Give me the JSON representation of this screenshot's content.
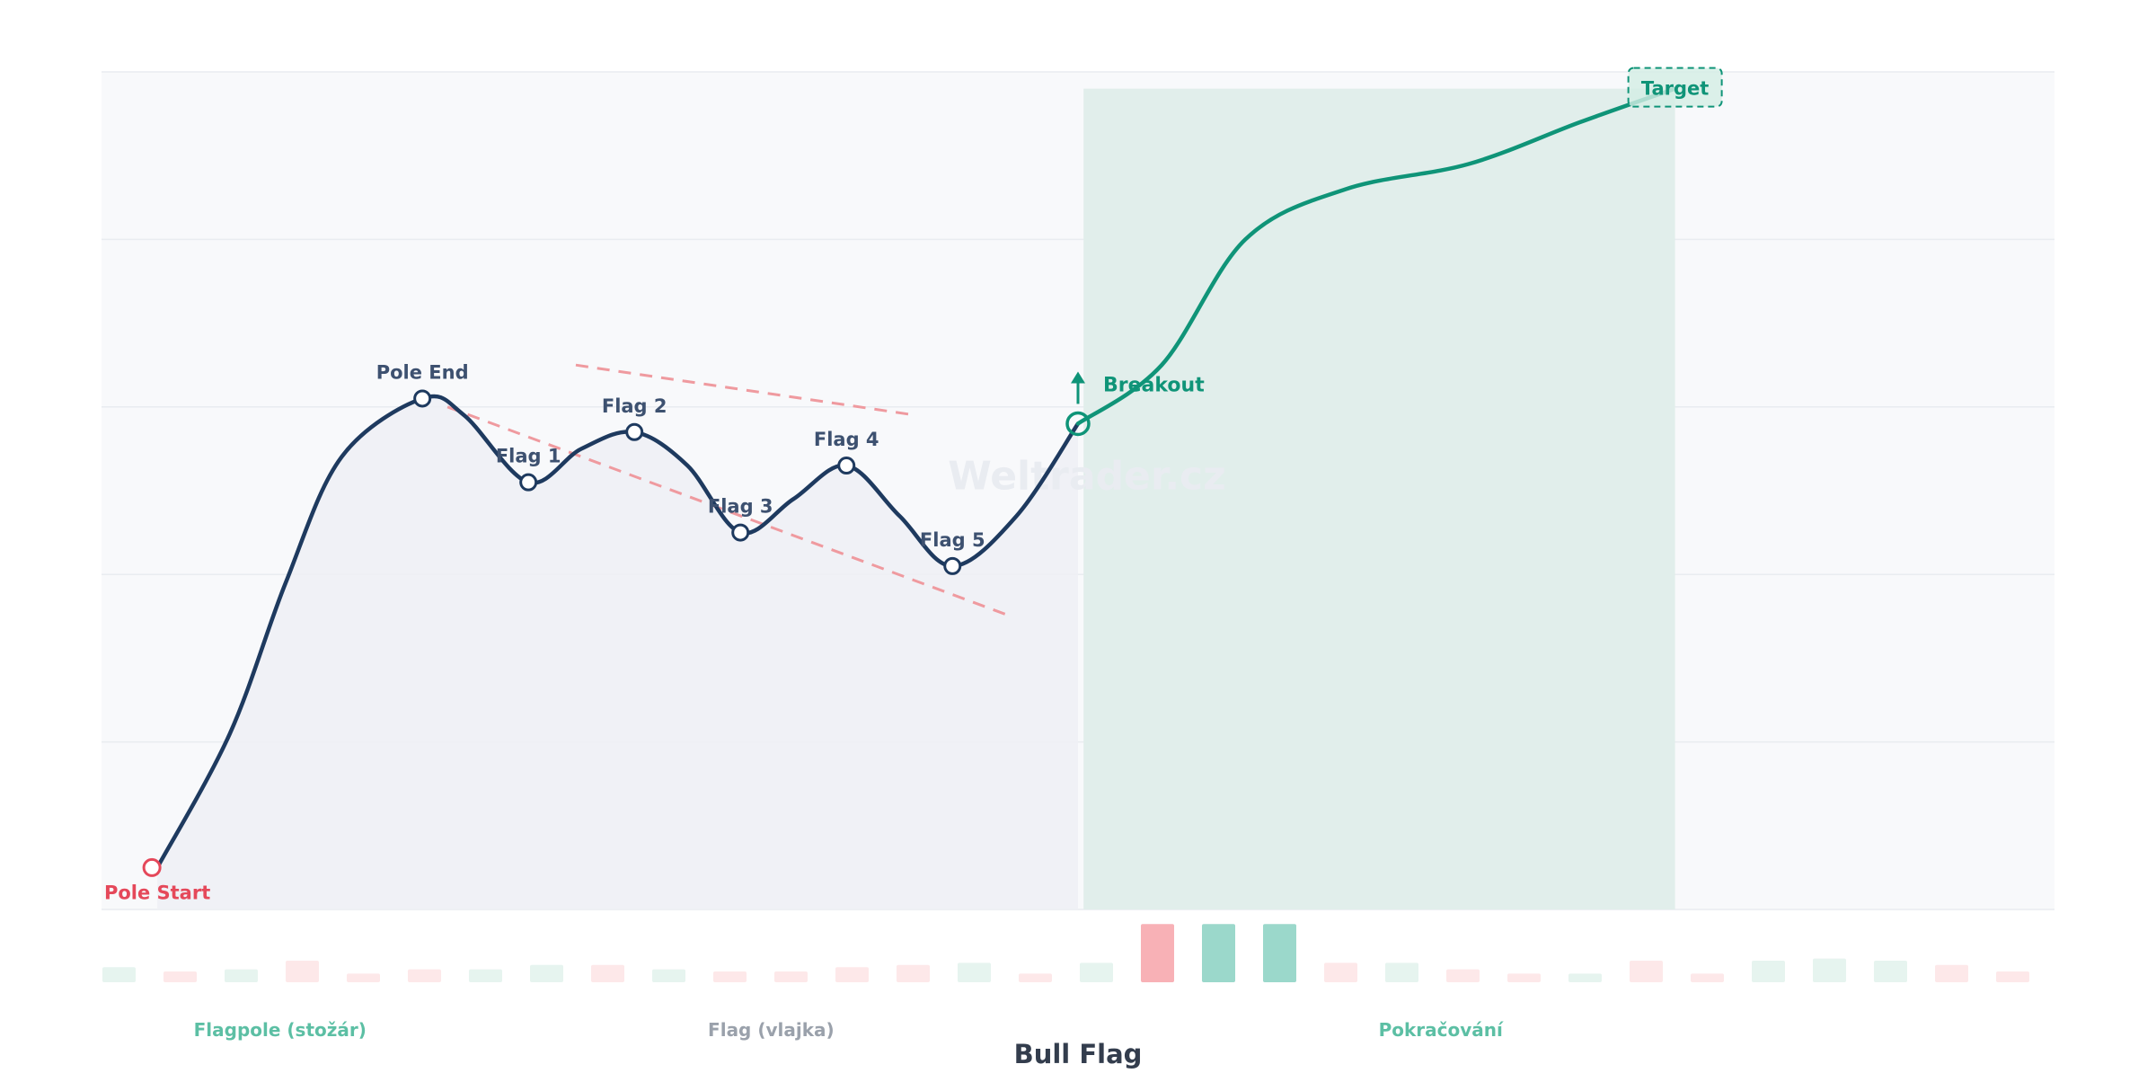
{
  "chart_data": {
    "type": "line",
    "title": "Bull Flag",
    "watermark": "Weltrader.cz",
    "xlim": [
      0,
      35
    ],
    "ylim": [
      0,
      5
    ],
    "grid": true,
    "points": [
      {
        "x": 1,
        "y": 0.25,
        "label": "Pole Start",
        "kind": "start"
      },
      {
        "x": 5.75,
        "y": 3.05,
        "label": "Pole End",
        "kind": "pivot"
      },
      {
        "x": 7.65,
        "y": 2.55,
        "label": "Flag 1",
        "kind": "pivot"
      },
      {
        "x": 9.55,
        "y": 2.85,
        "label": "Flag 2",
        "kind": "pivot"
      },
      {
        "x": 11.45,
        "y": 2.25,
        "label": "Flag 3",
        "kind": "pivot"
      },
      {
        "x": 13.35,
        "y": 2.65,
        "label": "Flag 4",
        "kind": "pivot"
      },
      {
        "x": 15.25,
        "y": 2.05,
        "label": "Flag 5",
        "kind": "pivot"
      },
      {
        "x": 17.5,
        "y": 2.9,
        "label": "Breakout",
        "kind": "breakout"
      },
      {
        "x": 28.2,
        "y": 4.9,
        "label": "Target",
        "kind": "target"
      }
    ],
    "curve": {
      "pattern": [
        [
          1,
          0.25
        ],
        [
          2.3,
          1.05
        ],
        [
          3.3,
          1.95
        ],
        [
          4.3,
          2.7
        ],
        [
          5.75,
          3.05
        ],
        [
          6.5,
          2.95
        ],
        [
          7.65,
          2.55
        ],
        [
          8.6,
          2.75
        ],
        [
          9.55,
          2.85
        ],
        [
          10.5,
          2.65
        ],
        [
          11.45,
          2.25
        ],
        [
          12.4,
          2.45
        ],
        [
          13.35,
          2.65
        ],
        [
          14.3,
          2.35
        ],
        [
          15.25,
          2.05
        ],
        [
          16.4,
          2.35
        ],
        [
          17.5,
          2.9
        ]
      ],
      "continuation": [
        [
          17.5,
          2.9
        ],
        [
          19,
          3.25
        ],
        [
          20.5,
          4.0
        ],
        [
          22.3,
          4.3
        ],
        [
          24.5,
          4.45
        ],
        [
          26.5,
          4.7
        ],
        [
          28.2,
          4.9
        ]
      ]
    },
    "trendlines": [
      {
        "name": "upper",
        "from": [
          8.5,
          3.25
        ],
        "to": [
          14.6,
          2.95
        ]
      },
      {
        "name": "lower",
        "from": [
          6.2,
          3.0
        ],
        "to": [
          16.3,
          1.75
        ]
      }
    ],
    "continuation_zone": [
      17.6,
      28.2
    ],
    "volume": {
      "values": [
        0.35,
        0.25,
        0.3,
        0.5,
        0.2,
        0.3,
        0.3,
        0.4,
        0.4,
        0.3,
        0.25,
        0.25,
        0.35,
        0.4,
        0.45,
        0.2,
        0.45,
        1.35,
        1.35,
        1.35,
        0.45,
        0.45,
        0.3,
        0.2,
        0.2,
        0.5,
        0.2,
        0.5,
        0.55,
        0.5,
        0.4,
        0.25
      ],
      "colors": [
        "green",
        "red",
        "green",
        "red",
        "red",
        "red",
        "green",
        "green",
        "red",
        "green",
        "red",
        "red",
        "red",
        "red",
        "green",
        "red",
        "green",
        "red-strong",
        "green-strong",
        "green-strong",
        "red",
        "green",
        "red",
        "red",
        "green",
        "red",
        "red",
        "green",
        "green",
        "green",
        "red",
        "red"
      ]
    },
    "phases": [
      {
        "label": "Flagpole (stožár)",
        "x": 3.2,
        "color": "#5cbfa4"
      },
      {
        "label": "Flag (vlajka)",
        "x": 12,
        "color": "#9aa1ab"
      },
      {
        "label": "Pokračování",
        "x": 24,
        "color": "#5cbfa4"
      }
    ]
  },
  "colors": {
    "line": "#1e3a5f",
    "continuation": "#0f9478",
    "breakout": "#0f9478",
    "start": "#e5485a",
    "trendline": "#ef9a9f",
    "grid": "#e9ecf0",
    "plot_bg": "#f8f9fb",
    "area": "#eef0f4",
    "zone": "#e1eeeb",
    "vol_green": "#e6f4ef",
    "vol_red": "#fde8e9",
    "vol_green_strong": "#9bd8cb",
    "vol_red_strong": "#f8b1b6",
    "label": "#3d5170"
  }
}
